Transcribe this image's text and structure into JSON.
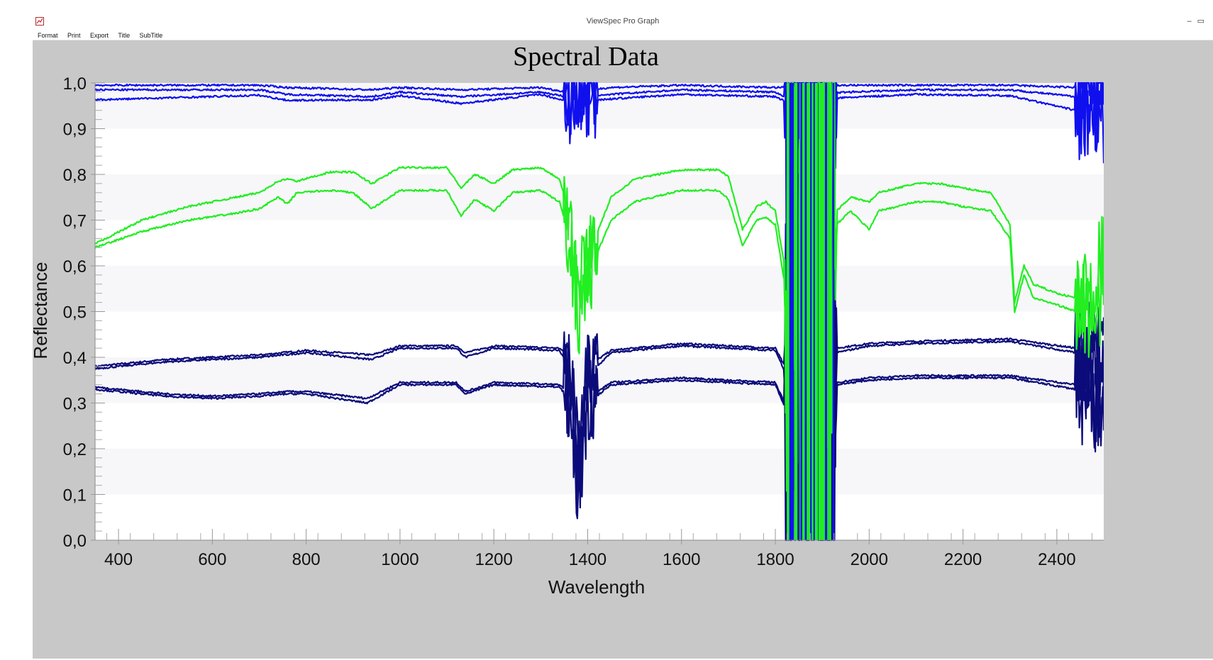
{
  "window": {
    "title": "ViewSpec Pro Graph",
    "minimize_label": "–",
    "restore_label": "▭",
    "icon": "chart-app-icon"
  },
  "menu": [
    "Format",
    "Print",
    "Export",
    "Title",
    "SubTitle"
  ],
  "colors": {
    "background": "#c8c8c8",
    "plot_band_light": "#f7f7f9",
    "plot_band_white": "#ffffff",
    "blue": "#1010ee",
    "green": "#22ee22",
    "navy": "#0b0b7a"
  },
  "chart_data": {
    "type": "line",
    "title": "Spectral Data",
    "xlabel": "Wavelength",
    "ylabel": "Reflectance",
    "xlim": [
      350,
      2500
    ],
    "ylim": [
      0.0,
      1.0
    ],
    "x_ticks": [
      400,
      600,
      800,
      1000,
      1200,
      1400,
      1600,
      1800,
      2000,
      2200,
      2400
    ],
    "y_ticks": [
      "0,0",
      "0,1",
      "0,2",
      "0,3",
      "0,4",
      "0,5",
      "0,6",
      "0,7",
      "0,8",
      "0,9",
      "1,0"
    ],
    "grid": "alternating horizontal bands",
    "noisy_regions": [
      [
        1350,
        1420
      ],
      [
        1820,
        1930
      ],
      [
        2440,
        2500
      ]
    ],
    "series": [
      {
        "color": "blue",
        "x": [
          350,
          700,
          760,
          940,
          1000,
          1130,
          1300,
          1355,
          1450,
          1600,
          1800,
          1820,
          1950,
          2100,
          2300,
          2440,
          2500
        ],
        "y": [
          0.995,
          0.995,
          0.99,
          0.985,
          0.99,
          0.985,
          0.99,
          0.98,
          0.99,
          0.995,
          0.99,
          0.99,
          0.995,
          0.995,
          0.995,
          0.99,
          0.98
        ]
      },
      {
        "color": "blue",
        "x": [
          350,
          700,
          760,
          940,
          1000,
          1130,
          1300,
          1355,
          1450,
          1600,
          1800,
          1820,
          1950,
          2100,
          2300,
          2440,
          2500
        ],
        "y": [
          0.985,
          0.985,
          0.975,
          0.97,
          0.98,
          0.97,
          0.98,
          0.97,
          0.975,
          0.985,
          0.98,
          0.97,
          0.98,
          0.985,
          0.985,
          0.97,
          0.95
        ]
      },
      {
        "color": "blue",
        "x": [
          350,
          700,
          760,
          940,
          1000,
          1130,
          1300,
          1355,
          1450,
          1600,
          1800,
          1820,
          1950,
          2100,
          2300,
          2440,
          2500
        ],
        "y": [
          0.963,
          0.973,
          0.962,
          0.963,
          0.972,
          0.955,
          0.975,
          0.96,
          0.965,
          0.975,
          0.97,
          0.96,
          0.968,
          0.975,
          0.972,
          0.94,
          0.91
        ]
      },
      {
        "color": "green",
        "x": [
          350,
          450,
          550,
          650,
          700,
          740,
          760,
          780,
          850,
          900,
          940,
          1000,
          1100,
          1130,
          1160,
          1200,
          1240,
          1300,
          1340,
          1360,
          1380,
          1400,
          1450,
          1500,
          1600,
          1680,
          1700,
          1730,
          1760,
          1780,
          1800,
          1820,
          1930,
          1960,
          2000,
          2020,
          2060,
          2100,
          2150,
          2200,
          2260,
          2300,
          2310,
          2330,
          2350,
          2400,
          2440,
          2470,
          2500
        ],
        "y": [
          0.648,
          0.7,
          0.73,
          0.75,
          0.76,
          0.785,
          0.79,
          0.785,
          0.805,
          0.805,
          0.78,
          0.815,
          0.815,
          0.77,
          0.8,
          0.78,
          0.81,
          0.815,
          0.79,
          0.72,
          0.55,
          0.62,
          0.75,
          0.79,
          0.81,
          0.81,
          0.795,
          0.68,
          0.73,
          0.74,
          0.72,
          0.6,
          0.72,
          0.75,
          0.74,
          0.76,
          0.77,
          0.78,
          0.78,
          0.77,
          0.76,
          0.69,
          0.52,
          0.6,
          0.56,
          0.54,
          0.53,
          0.54,
          0.62
        ]
      },
      {
        "color": "green",
        "x": [
          350,
          450,
          550,
          650,
          700,
          740,
          760,
          780,
          850,
          900,
          940,
          1000,
          1100,
          1130,
          1160,
          1200,
          1240,
          1300,
          1340,
          1360,
          1380,
          1400,
          1450,
          1500,
          1600,
          1680,
          1700,
          1730,
          1760,
          1780,
          1800,
          1820,
          1930,
          1960,
          2000,
          2020,
          2060,
          2100,
          2150,
          2200,
          2260,
          2300,
          2310,
          2330,
          2350,
          2400,
          2440,
          2470,
          2500
        ],
        "y": [
          0.64,
          0.675,
          0.7,
          0.715,
          0.725,
          0.75,
          0.735,
          0.76,
          0.765,
          0.76,
          0.725,
          0.765,
          0.765,
          0.71,
          0.745,
          0.72,
          0.76,
          0.765,
          0.74,
          0.67,
          0.5,
          0.58,
          0.7,
          0.74,
          0.765,
          0.765,
          0.745,
          0.645,
          0.7,
          0.705,
          0.69,
          0.56,
          0.69,
          0.72,
          0.68,
          0.72,
          0.73,
          0.74,
          0.74,
          0.73,
          0.72,
          0.66,
          0.5,
          0.58,
          0.53,
          0.515,
          0.5,
          0.51,
          0.55
        ]
      },
      {
        "color": "navy",
        "x": [
          350,
          500,
          700,
          800,
          940,
          1000,
          1120,
          1140,
          1200,
          1340,
          1360,
          1380,
          1400,
          1450,
          1600,
          1800,
          1820,
          1930,
          2000,
          2100,
          2300,
          2440,
          2500
        ],
        "y": [
          0.38,
          0.395,
          0.405,
          0.415,
          0.405,
          0.425,
          0.425,
          0.41,
          0.425,
          0.42,
          0.4,
          0.2,
          0.38,
          0.415,
          0.43,
          0.42,
          0.38,
          0.42,
          0.43,
          0.435,
          0.44,
          0.42,
          0.4
        ]
      },
      {
        "color": "navy",
        "x": [
          350,
          500,
          700,
          800,
          940,
          1000,
          1120,
          1140,
          1200,
          1340,
          1360,
          1380,
          1400,
          1450,
          1600,
          1800,
          1820,
          1930,
          2000,
          2100,
          2300,
          2440,
          2500
        ],
        "y": [
          0.375,
          0.39,
          0.4,
          0.41,
          0.395,
          0.42,
          0.42,
          0.4,
          0.42,
          0.415,
          0.38,
          0.18,
          0.36,
          0.41,
          0.425,
          0.415,
          0.37,
          0.41,
          0.425,
          0.43,
          0.435,
          0.41,
          0.39
        ]
      },
      {
        "color": "navy",
        "x": [
          350,
          500,
          600,
          700,
          760,
          800,
          930,
          1000,
          1120,
          1140,
          1200,
          1340,
          1360,
          1380,
          1400,
          1450,
          1600,
          1800,
          1820,
          1930,
          2000,
          2100,
          2300,
          2440,
          2500
        ],
        "y": [
          0.335,
          0.32,
          0.315,
          0.32,
          0.325,
          0.325,
          0.31,
          0.345,
          0.345,
          0.325,
          0.345,
          0.34,
          0.32,
          0.12,
          0.31,
          0.345,
          0.355,
          0.345,
          0.3,
          0.345,
          0.355,
          0.36,
          0.36,
          0.34,
          0.31
        ]
      },
      {
        "color": "navy",
        "x": [
          350,
          500,
          600,
          700,
          760,
          800,
          930,
          1000,
          1120,
          1140,
          1200,
          1340,
          1360,
          1380,
          1400,
          1450,
          1600,
          1800,
          1820,
          1930,
          2000,
          2100,
          2300,
          2440,
          2500
        ],
        "y": [
          0.33,
          0.315,
          0.31,
          0.315,
          0.32,
          0.32,
          0.3,
          0.34,
          0.34,
          0.32,
          0.34,
          0.335,
          0.31,
          0.1,
          0.3,
          0.34,
          0.35,
          0.34,
          0.29,
          0.34,
          0.35,
          0.355,
          0.355,
          0.33,
          0.3
        ]
      }
    ]
  }
}
